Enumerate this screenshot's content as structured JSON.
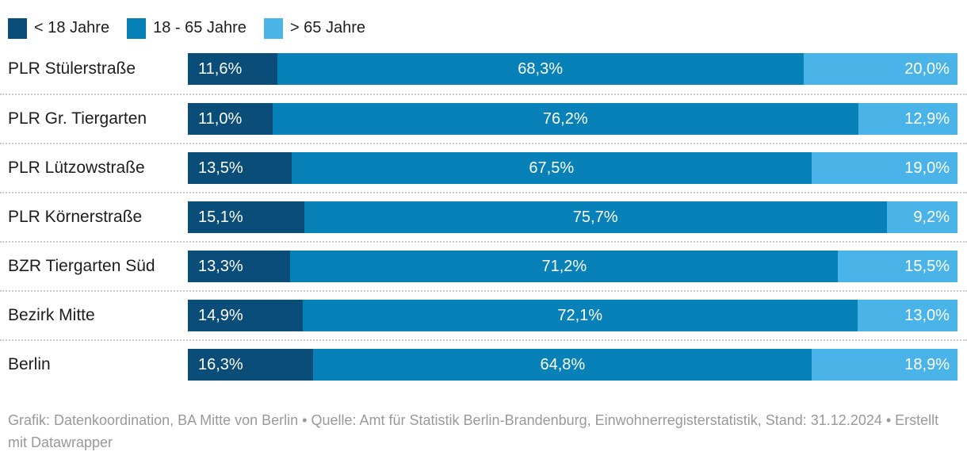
{
  "legend": {
    "items": [
      {
        "label": "< 18 Jahre"
      },
      {
        "label": "18 - 65 Jahre"
      },
      {
        "label": "> 65 Jahre"
      }
    ]
  },
  "chart_data": {
    "type": "bar",
    "stacked": true,
    "orientation": "horizontal",
    "unit": "%",
    "legend_position": "top",
    "grid": false,
    "categories": [
      "PLR Stülerstraße",
      "PLR Gr. Tiergarten",
      "PLR Lützowstraße",
      "PLR Körnerstraße",
      "BZR Tiergarten Süd",
      "Bezirk Mitte",
      "Berlin"
    ],
    "series": [
      {
        "name": "< 18 Jahre",
        "color": "#0b4d79",
        "values": [
          11.6,
          11.0,
          13.5,
          15.1,
          13.3,
          14.9,
          16.3
        ],
        "labels": [
          "11,6%",
          "11,0%",
          "13,5%",
          "15,1%",
          "13,3%",
          "14,9%",
          "16,3%"
        ]
      },
      {
        "name": "18 - 65 Jahre",
        "color": "#0781b7",
        "values": [
          68.3,
          76.2,
          67.5,
          75.7,
          71.2,
          72.1,
          64.8
        ],
        "labels": [
          "68,3%",
          "76,2%",
          "67,5%",
          "75,7%",
          "71,2%",
          "72,1%",
          "64,8%"
        ]
      },
      {
        "name": "> 65 Jahre",
        "color": "#4ab3e8",
        "values": [
          20.0,
          12.9,
          19.0,
          9.2,
          15.5,
          13.0,
          18.9
        ],
        "labels": [
          "20,0%",
          "12,9%",
          "19,0%",
          "9,2%",
          "15,5%",
          "13,0%",
          "18,9%"
        ]
      }
    ]
  },
  "footer": {
    "text": "Grafik: Datenkoordination, BA Mitte von Berlin • Quelle: Amt für Statistik Berlin-Brandenburg, Einwohnerregisterstatistik, Stand: 31.12.2024 • Erstellt mit Datawrapper"
  }
}
